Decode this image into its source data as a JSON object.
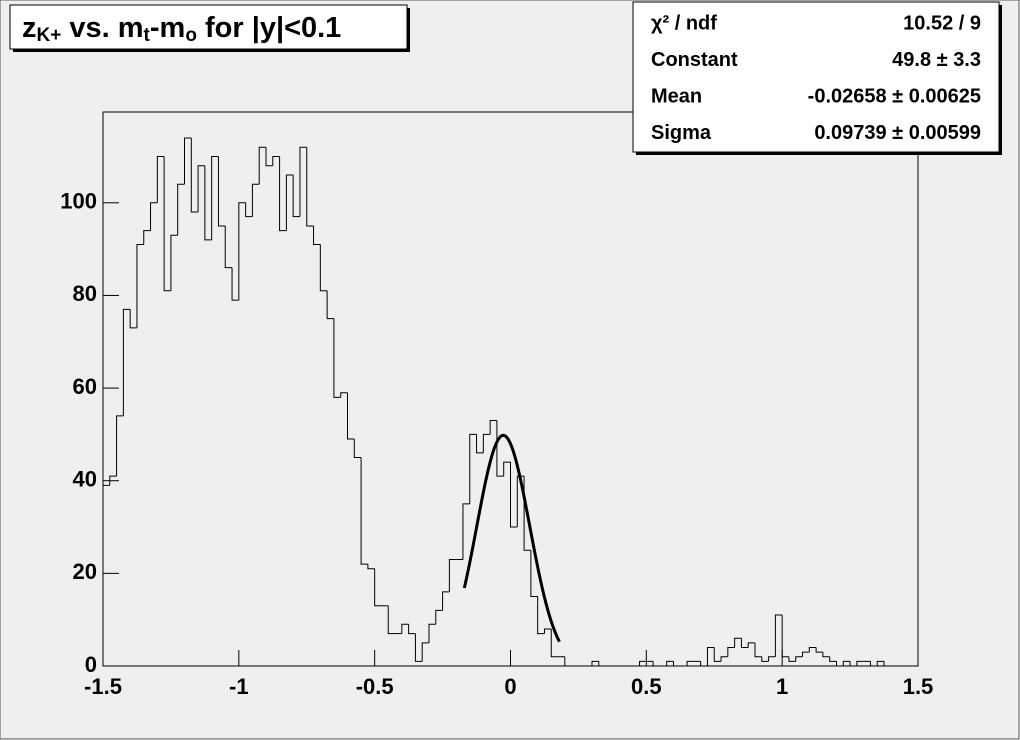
{
  "chart_data": {
    "type": "histogram",
    "title": [
      {
        "text": "z"
      },
      {
        "text": "K+",
        "sub": true
      },
      {
        "text": " vs. m"
      },
      {
        "text": "t",
        "sub": true
      },
      {
        "text": "-m"
      },
      {
        "text": "o",
        "sub": true
      },
      {
        "text": " for |y|<0.1"
      }
    ],
    "bins": [
      -1.5,
      -1.475,
      -1.45,
      -1.425,
      -1.4,
      -1.375,
      -1.35,
      -1.325,
      -1.3,
      -1.275,
      -1.25,
      -1.225,
      -1.2,
      -1.175,
      -1.15,
      -1.125,
      -1.1,
      -1.075,
      -1.05,
      -1.025,
      -1,
      -0.975,
      -0.95,
      -0.925,
      -0.9,
      -0.875,
      -0.85,
      -0.825,
      -0.8,
      -0.775,
      -0.75,
      -0.725,
      -0.7,
      -0.675,
      -0.65,
      -0.625,
      -0.6,
      -0.575,
      -0.55,
      -0.525,
      -0.5,
      -0.475,
      -0.45,
      -0.425,
      -0.4,
      -0.375,
      -0.35,
      -0.325,
      -0.3,
      -0.275,
      -0.25,
      -0.225,
      -0.2,
      -0.175,
      -0.15,
      -0.125,
      -0.1,
      -0.075,
      -0.05,
      -0.025,
      0,
      0.025,
      0.05,
      0.075,
      0.1,
      0.125,
      0.15,
      0.175,
      0.2,
      0.225,
      0.25,
      0.275,
      0.3,
      0.325,
      0.35,
      0.375,
      0.4,
      0.425,
      0.45,
      0.475,
      0.5,
      0.525,
      0.55,
      0.575,
      0.6,
      0.625,
      0.65,
      0.675,
      0.7,
      0.725,
      0.75,
      0.775,
      0.8,
      0.825,
      0.85,
      0.875,
      0.9,
      0.925,
      0.95,
      0.975,
      1,
      1.025,
      1.05,
      1.075,
      1.1,
      1.125,
      1.15,
      1.175,
      1.2,
      1.225,
      1.25,
      1.275,
      1.3,
      1.325,
      1.35,
      1.375,
      1.4,
      1.425,
      1.45,
      1.475,
      1.5
    ],
    "values": [
      39,
      41,
      54,
      77,
      73,
      91,
      94,
      100,
      110,
      81,
      93,
      104,
      114,
      98,
      108,
      92,
      110,
      95,
      86,
      79,
      100,
      97,
      104,
      112,
      108,
      110,
      94,
      106,
      97,
      112,
      95,
      91,
      81,
      75,
      58,
      59,
      49,
      45,
      22,
      21,
      13,
      13,
      7,
      7,
      9,
      7,
      1,
      5,
      9,
      12,
      16,
      23,
      23,
      35,
      50,
      46,
      50,
      53,
      41,
      44,
      30,
      41,
      25,
      15,
      7,
      8,
      2,
      2,
      0,
      0,
      0,
      0,
      1,
      0,
      0,
      0,
      0,
      0,
      0,
      1,
      1,
      0,
      0,
      1,
      0,
      0,
      1,
      1,
      0,
      4,
      1,
      2,
      4,
      6,
      4,
      5,
      2,
      1,
      2,
      11,
      2,
      1,
      2,
      3,
      4,
      3,
      2,
      1,
      0,
      1,
      0,
      1,
      1,
      0,
      1,
      0,
      0,
      0,
      0,
      0
    ],
    "color": "#000000",
    "xlim": [
      -1.5,
      1.5
    ],
    "ylim": [
      0,
      119.6
    ],
    "xticks": [
      -1.5,
      -1,
      -0.5,
      0,
      0.5,
      1,
      1.5
    ],
    "yticks": [
      0,
      20,
      40,
      60,
      80,
      100
    ],
    "fit": {
      "constant": 49.8,
      "mean": -0.02658,
      "sigma": 0.09739,
      "xrange": [
        -0.17,
        0.18
      ]
    },
    "stats": [
      {
        "name": "χ² / ndf",
        "text": "10.52 / 9"
      },
      {
        "name": "Constant",
        "text": "49.8 ± 3.3"
      },
      {
        "name": "Mean",
        "text": "-0.02658 ± 0.00625"
      },
      {
        "name": "Sigma",
        "text": "0.09739 ± 0.00599"
      }
    ]
  }
}
